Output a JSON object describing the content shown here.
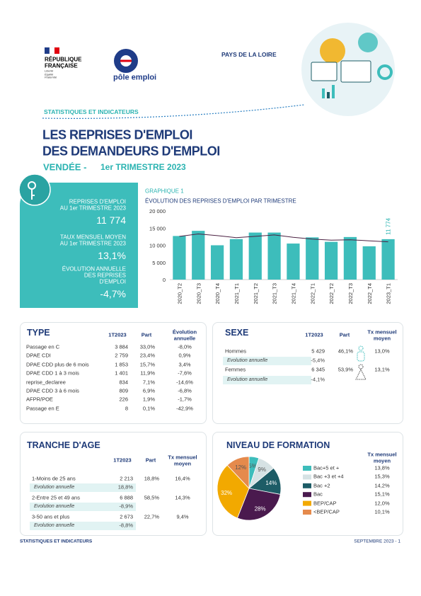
{
  "header": {
    "republique": [
      "RÉPUBLIQUE",
      "FRANÇAISE"
    ],
    "motto": [
      "Liberté",
      "Égalité",
      "Fraternité"
    ],
    "brand": "pôle emploi",
    "region": "PAYS DE LA LOIRE",
    "section": "STATISTIQUES ET INDICATEURS"
  },
  "title": {
    "lines": [
      "LES REPRISES D'EMPLOI",
      "DES DEMANDEURS D'EMPLOI"
    ],
    "place": "VENDÉE -",
    "period": "1er TRIMESTRE 2023"
  },
  "kpis": [
    {
      "label": [
        "REPRISES D'EMPLOI",
        "AU 1er TRIMESTRE 2023"
      ],
      "value": "11 774"
    },
    {
      "label": [
        "TAUX MENSUEL MOYEN",
        "AU 1er TRIMESTRE 2023"
      ],
      "value": "13,1%"
    },
    {
      "label": [
        "ÉVOLUTION ANNUELLE",
        "DES REPRISES",
        "D'EMPLOI"
      ],
      "value": "-4,7%"
    }
  ],
  "chart_data": [
    {
      "type": "bar",
      "kicker": "GRAPHIQUE 1",
      "title": "ÉVOLUTION DES REPRISES D'EMPLOI PAR TRIMESTRE",
      "categories": [
        "2020_T2",
        "2020_T3",
        "2020_T4",
        "2021_T1",
        "2021_T2",
        "2021_T3",
        "2021_T4",
        "2022_T1",
        "2022_T2",
        "2022_T3",
        "2022_T4",
        "2023_T1"
      ],
      "series": [
        {
          "type": "bar",
          "color": "#3dbdbb",
          "values": [
            12700,
            14200,
            10000,
            11800,
            13700,
            13700,
            10500,
            12300,
            11000,
            12400,
            9700,
            11774
          ],
          "value_labels": [
            null,
            null,
            null,
            null,
            null,
            null,
            null,
            null,
            null,
            null,
            null,
            "11 774"
          ]
        },
        {
          "type": "line",
          "color": "#4b2142",
          "values": [
            12600,
            13300,
            12800,
            12200,
            12600,
            13000,
            12300,
            11800,
            11500,
            11600,
            11300,
            11000
          ]
        }
      ],
      "ylim": [
        0,
        20000
      ],
      "yticks": [
        0,
        {
          "value": 5000,
          "label": "5 000"
        },
        {
          "value": 10000,
          "label": "10 000"
        },
        {
          "value": 15000,
          "label": "15 000"
        },
        {
          "value": 20000,
          "label": "20 000"
        }
      ],
      "grid": false
    },
    {
      "type": "pie",
      "title": "NIVEAU DE FORMATION",
      "categories": [
        "Bac+5 et +",
        "Bac +3 et +4",
        "Bac +2",
        "Bac",
        "BEP/CAP",
        "<BEP/CAP"
      ],
      "values": [
        5,
        9,
        14,
        28,
        32,
        12
      ],
      "value_labels": [
        "5%",
        "9%",
        "14%",
        "28%",
        "32%",
        "12%"
      ],
      "colors": [
        "#3dbdbb",
        "#d6e2e4",
        "#1d5c66",
        "#4a1a4e",
        "#f2a900",
        "#e58a4c"
      ],
      "rate_header": "Tx mensuel moyen",
      "rates": [
        "13,8%",
        "15,3%",
        "14,2%",
        "15,1%",
        "12,0%",
        "10,1%"
      ]
    }
  ],
  "type_table": {
    "title": "TYPE",
    "headers": [
      "1T2023",
      "Part",
      "Évolution annuelle"
    ],
    "rows": [
      [
        "Passage en C",
        "3 884",
        "33,0%",
        "-8,0%"
      ],
      [
        "DPAE CDI",
        "2 759",
        "23,4%",
        "0,9%"
      ],
      [
        "DPAE CDD plus de 6 mois",
        "1 853",
        "15,7%",
        "3,4%"
      ],
      [
        "DPAE CDD 1 à 3 mois",
        "1 401",
        "11,9%",
        "-7,6%"
      ],
      [
        "reprise_declaree",
        "834",
        "7,1%",
        "-14,6%"
      ],
      [
        "DPAE CDD 3 à 6 mois",
        "809",
        "6,9%",
        "-6,8%"
      ],
      [
        "AFPR/POE",
        "226",
        "1,9%",
        "-1,7%"
      ],
      [
        "Passage en E",
        "8",
        "0,1%",
        "-42,9%"
      ]
    ]
  },
  "sexe_table": {
    "title": "SEXE",
    "headers": [
      "1T2023",
      "Part",
      "Tx mensuel moyen"
    ],
    "rows": [
      [
        "Hommes",
        "5 429",
        "46,1%",
        "13,0%"
      ],
      [
        "Evolution annuelle",
        "-5,4%"
      ],
      [
        "Femmes",
        "6 345",
        "53,9%",
        "13,1%"
      ],
      [
        "Evolution annuelle",
        "-4,1%"
      ]
    ]
  },
  "age_table": {
    "title": "TRANCHE D'AGE",
    "headers": [
      "1T2023",
      "Part",
      "Tx mensuel moyen"
    ],
    "rows": [
      [
        "1-Moins de 25 ans",
        "2 213",
        "18,8%",
        "16,4%"
      ],
      [
        "Evolution annuelle",
        "18,8%"
      ],
      [
        "2-Entre 25 et 49 ans",
        "6 888",
        "58,5%",
        "14,3%"
      ],
      [
        "Evolution annuelle",
        "-8,9%"
      ],
      [
        "3-50 ans et plus",
        "2 673",
        "22,7%",
        "9,4%"
      ],
      [
        "Evolution annuelle",
        "-8,8%"
      ]
    ]
  },
  "footer": {
    "left": "STATISTIQUES ET INDICATEURS",
    "right": "SEPTEMBRE 2023 - 1"
  }
}
